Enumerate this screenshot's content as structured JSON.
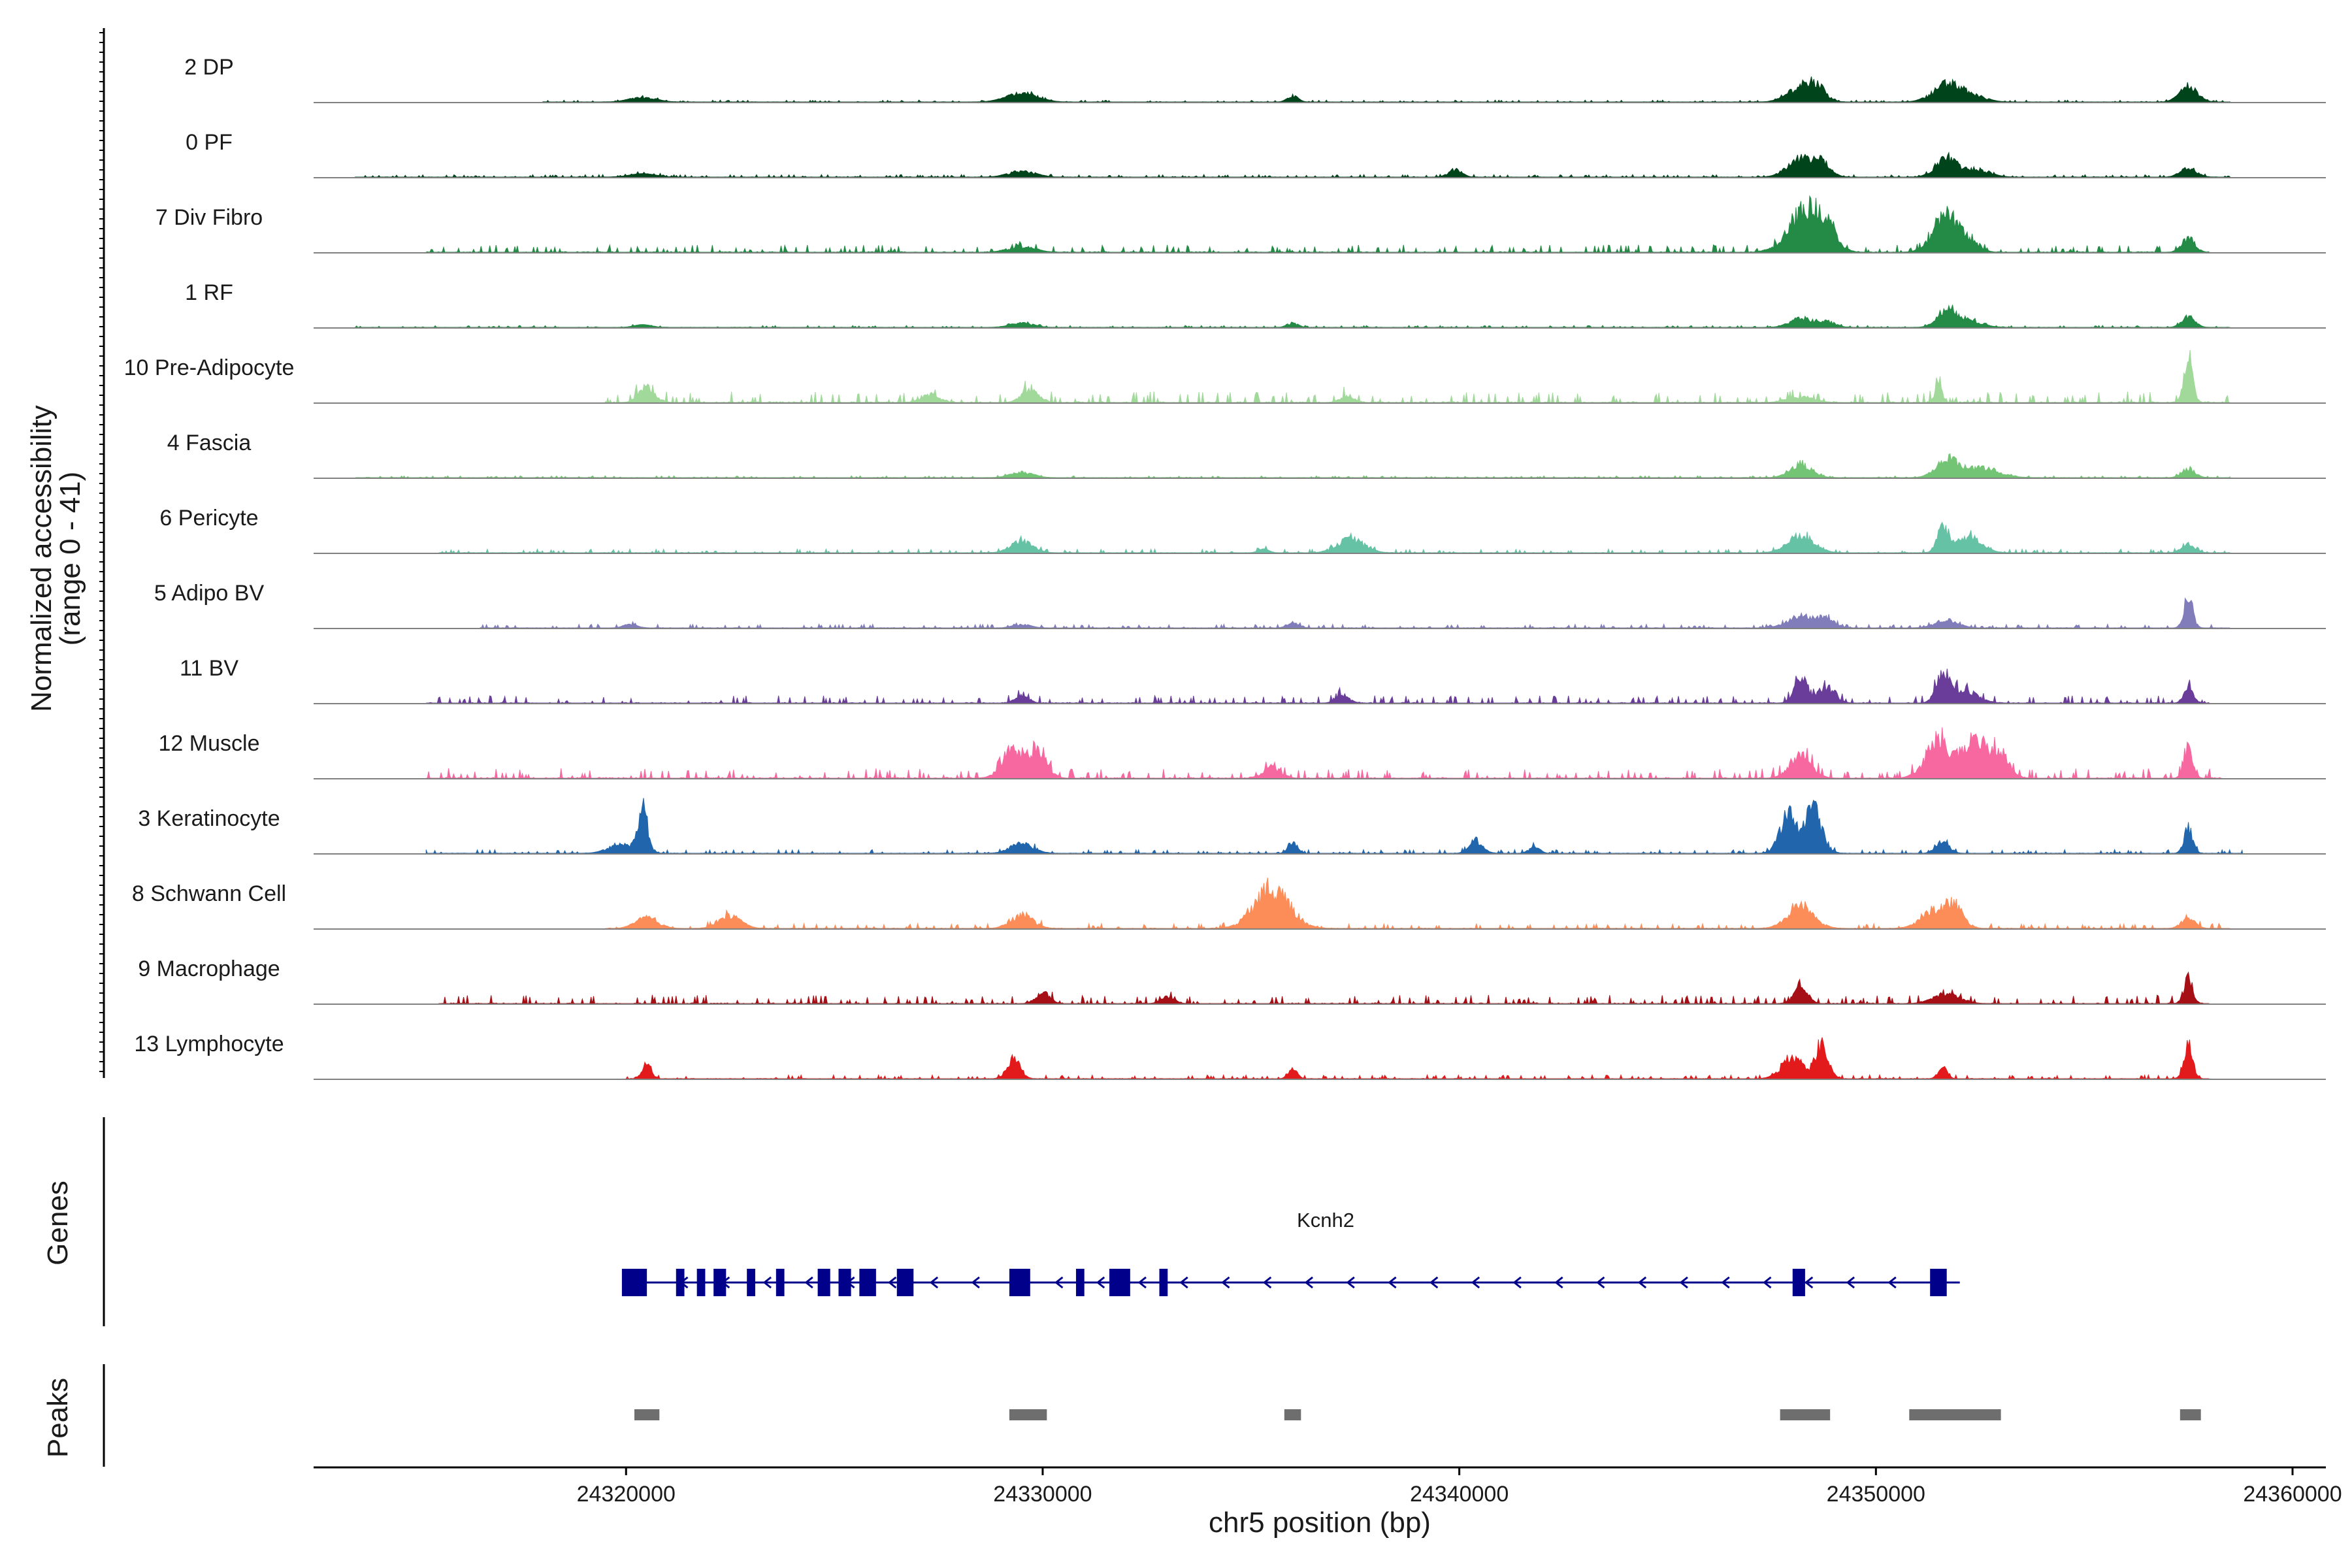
{
  "chart_data": {
    "type": "area",
    "title": "",
    "ylabel": "Normalized accessibility",
    "ylabel_range": "(range 0 - 41)",
    "ylim": [
      0,
      41
    ],
    "xlabel": "chr5 position (bp)",
    "xlim": [
      24312500,
      24360800
    ],
    "xticks": [
      24320000,
      24330000,
      24340000,
      24350000,
      24360000
    ],
    "xtick_labels": [
      "24320000",
      "24330000",
      "24340000",
      "24350000",
      "24360000"
    ],
    "chrom_start": 24313000,
    "chrom_end": 24358700,
    "peak_positions": [
      24320400,
      24329500,
      24336000,
      24348200,
      24348600,
      24351700,
      24357500
    ],
    "tracks": [
      {
        "name": "2 DP",
        "color": "#00441b",
        "peaks": [
          [
            24320400,
            0.08,
            300
          ],
          [
            24329500,
            0.16,
            350
          ],
          [
            24336000,
            0.11,
            120
          ],
          [
            24348200,
            0.28,
            300
          ],
          [
            24348600,
            0.22,
            200
          ],
          [
            24351700,
            0.32,
            320
          ],
          [
            24352300,
            0.12,
            300
          ],
          [
            24357500,
            0.3,
            200
          ]
        ],
        "noise": 0.015,
        "range": [
          24318000,
          24358500
        ]
      },
      {
        "name": "0 PF",
        "color": "#00441b",
        "peaks": [
          [
            24320400,
            0.05,
            300
          ],
          [
            24329500,
            0.11,
            300
          ],
          [
            24339900,
            0.14,
            150
          ],
          [
            24348200,
            0.34,
            300
          ],
          [
            24348700,
            0.24,
            200
          ],
          [
            24351700,
            0.36,
            250
          ],
          [
            24352400,
            0.14,
            300
          ],
          [
            24357500,
            0.18,
            180
          ]
        ],
        "noise": 0.02,
        "range": [
          24313500,
          24358500
        ]
      },
      {
        "name": "7 Div Fibro",
        "color": "#238b45",
        "peaks": [
          [
            24348200,
            0.62,
            350
          ],
          [
            24348700,
            0.55,
            280
          ],
          [
            24351700,
            0.68,
            300
          ],
          [
            24352300,
            0.15,
            200
          ],
          [
            24357500,
            0.26,
            150
          ],
          [
            24329500,
            0.1,
            300
          ]
        ],
        "noise": 0.06,
        "range": [
          24315200,
          24358000
        ]
      },
      {
        "name": "1 RF",
        "color": "#238b45",
        "peaks": [
          [
            24320400,
            0.04,
            200
          ],
          [
            24329500,
            0.08,
            250
          ],
          [
            24336000,
            0.08,
            120
          ],
          [
            24348200,
            0.17,
            250
          ],
          [
            24348800,
            0.11,
            200
          ],
          [
            24351700,
            0.3,
            220
          ],
          [
            24352200,
            0.13,
            300
          ],
          [
            24357500,
            0.2,
            150
          ]
        ],
        "noise": 0.015,
        "range": [
          24313500,
          24358500
        ]
      },
      {
        "name": "10 Pre-Adipocyte",
        "color": "#a1d99b",
        "peaks": [
          [
            24320500,
            0.28,
            180
          ],
          [
            24329700,
            0.22,
            200
          ],
          [
            24327300,
            0.15,
            200
          ],
          [
            24337300,
            0.12,
            150
          ],
          [
            24351500,
            0.36,
            80
          ],
          [
            24357500,
            0.88,
            100
          ],
          [
            24348200,
            0.1,
            300
          ]
        ],
        "noise": 0.09,
        "range": [
          24319500,
          24358500
        ]
      },
      {
        "name": "4 Fascia",
        "color": "#74c476",
        "peaks": [
          [
            24329500,
            0.1,
            250
          ],
          [
            24348200,
            0.24,
            250
          ],
          [
            24351700,
            0.33,
            250
          ],
          [
            24352500,
            0.18,
            400
          ],
          [
            24357500,
            0.17,
            150
          ]
        ],
        "noise": 0.015,
        "range": [
          24313500,
          24358500
        ]
      },
      {
        "name": "6 Pericyte",
        "color": "#66c2a4",
        "peaks": [
          [
            24329500,
            0.21,
            250
          ],
          [
            24337400,
            0.26,
            300
          ],
          [
            24348200,
            0.32,
            300
          ],
          [
            24351600,
            0.52,
            120
          ],
          [
            24352200,
            0.3,
            300
          ],
          [
            24357500,
            0.16,
            150
          ],
          [
            24335300,
            0.06,
            120
          ]
        ],
        "noise": 0.03,
        "range": [
          24315500,
          24358500
        ]
      },
      {
        "name": "5 Adipo BV",
        "color": "#807dba",
        "peaks": [
          [
            24348200,
            0.22,
            300
          ],
          [
            24348800,
            0.16,
            200
          ],
          [
            24351700,
            0.15,
            250
          ],
          [
            24357500,
            0.62,
            100
          ],
          [
            24336000,
            0.1,
            120
          ],
          [
            24329500,
            0.06,
            200
          ],
          [
            24320100,
            0.06,
            150
          ]
        ],
        "noise": 0.03,
        "range": [
          24316500,
          24358500
        ]
      },
      {
        "name": "11 BV",
        "color": "#6a3d9a",
        "peaks": [
          [
            24348200,
            0.5,
            150
          ],
          [
            24348800,
            0.28,
            200
          ],
          [
            24351600,
            0.52,
            150
          ],
          [
            24352100,
            0.25,
            300
          ],
          [
            24357500,
            0.36,
            100
          ],
          [
            24329500,
            0.14,
            150
          ],
          [
            24337200,
            0.14,
            150
          ]
        ],
        "noise": 0.06,
        "range": [
          24315200,
          24358000
        ]
      },
      {
        "name": "12 Muscle",
        "color": "#f768a1",
        "peaks": [
          [
            24329300,
            0.56,
            250
          ],
          [
            24329900,
            0.5,
            200
          ],
          [
            24348200,
            0.4,
            250
          ],
          [
            24351500,
            0.66,
            300
          ],
          [
            24352400,
            0.74,
            300
          ],
          [
            24353000,
            0.4,
            200
          ],
          [
            24357500,
            0.56,
            100
          ],
          [
            24335500,
            0.2,
            200
          ]
        ],
        "noise": 0.08,
        "range": [
          24315200,
          24358300
        ]
      },
      {
        "name": "3 Keratinocyte",
        "color": "#2166ac",
        "peaks": [
          [
            24320400,
            0.8,
            120
          ],
          [
            24319900,
            0.16,
            300
          ],
          [
            24329500,
            0.2,
            250
          ],
          [
            24336000,
            0.2,
            100
          ],
          [
            24340400,
            0.24,
            150
          ],
          [
            24341800,
            0.12,
            120
          ],
          [
            24347900,
            0.7,
            200
          ],
          [
            24348500,
            0.82,
            200
          ],
          [
            24351600,
            0.22,
            150
          ],
          [
            24357500,
            0.46,
            100
          ]
        ],
        "noise": 0.03,
        "range": [
          24315200,
          24358800
        ]
      },
      {
        "name": "8 Schwann Cell",
        "color": "#fc8d59",
        "peaks": [
          [
            24320500,
            0.2,
            250
          ],
          [
            24322500,
            0.24,
            250
          ],
          [
            24329500,
            0.26,
            250
          ],
          [
            24335500,
            0.74,
            400
          ],
          [
            24348200,
            0.42,
            300
          ],
          [
            24351400,
            0.32,
            300
          ],
          [
            24351900,
            0.4,
            200
          ],
          [
            24357500,
            0.22,
            150
          ]
        ],
        "noise": 0.04,
        "range": [
          24319500,
          24358500
        ]
      },
      {
        "name": "9 Macrophage",
        "color": "#a50f15",
        "peaks": [
          [
            24330000,
            0.22,
            150
          ],
          [
            24348200,
            0.36,
            150
          ],
          [
            24351700,
            0.18,
            300
          ],
          [
            24357500,
            0.5,
            100
          ],
          [
            24333000,
            0.12,
            150
          ]
        ],
        "noise": 0.07,
        "range": [
          24315500,
          24358000
        ]
      },
      {
        "name": "13 Lymphocyte",
        "color": "#e31a1c",
        "peaks": [
          [
            24320500,
            0.32,
            100
          ],
          [
            24329300,
            0.38,
            150
          ],
          [
            24336000,
            0.18,
            100
          ],
          [
            24348000,
            0.4,
            250
          ],
          [
            24348700,
            0.64,
            150
          ],
          [
            24351600,
            0.22,
            100
          ],
          [
            24357500,
            0.66,
            100
          ]
        ],
        "noise": 0.03,
        "range": [
          24320000,
          24358000
        ]
      }
    ],
    "genes": [
      {
        "name": "Kcnh2",
        "strand": "-",
        "start": 24320000,
        "end": 24351700,
        "exons": [
          [
            24319900,
            24320500
          ],
          [
            24321200,
            24321400
          ],
          [
            24321700,
            24321900
          ],
          [
            24322100,
            24322400
          ],
          [
            24322900,
            24323100
          ],
          [
            24323600,
            24323800
          ],
          [
            24324600,
            24324900
          ],
          [
            24325100,
            24325400
          ],
          [
            24325600,
            24326000
          ],
          [
            24326500,
            24326900
          ],
          [
            24329200,
            24329700
          ],
          [
            24330800,
            24331000
          ],
          [
            24331600,
            24332100
          ],
          [
            24332800,
            24333000
          ],
          [
            24348000,
            24348300
          ],
          [
            24351300,
            24351700
          ]
        ]
      }
    ],
    "peaks_track": [
      [
        24320200,
        24320800
      ],
      [
        24329200,
        24330100
      ],
      [
        24335800,
        24336200
      ],
      [
        24347700,
        24348900
      ],
      [
        24350800,
        24353000
      ],
      [
        24357300,
        24357800
      ]
    ]
  },
  "panels": {
    "genes_label": "Genes",
    "peaks_label": "Peaks"
  },
  "colors": {
    "gene_model": "#00008b",
    "peak_box": "#6e6e6e",
    "baseline": "#808080",
    "axis": "#000000"
  }
}
